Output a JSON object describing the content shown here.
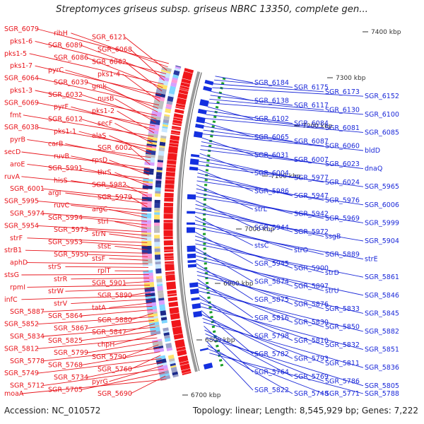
{
  "header": {
    "title": "Streptomyces griseus subsp. griseus NBRC 13350, complete gen...",
    "accession": "Accession: NC_010572",
    "summary": "Topology: linear; Length: 8,545,929 bp; Genes: 7,222"
  },
  "colors": {
    "forward_labels": "#e8141b",
    "reverse_labels": "#1a28d8",
    "forward_cds": "#f0161a",
    "reverse_cds": "#1430e0",
    "backbone": "#9a9a9a",
    "gc_ticks": "#1a9e2a"
  },
  "axis_ticks": [
    "7400 kbp",
    "7300 kbp",
    "7200 kbp",
    "7100 kbp",
    "7000 kbp",
    "6900 kbp",
    "6800 kbp",
    "6700 kbp"
  ],
  "left_labels": [
    "SGR_6079",
    "ribH",
    "SGR_6121",
    "pks1-6",
    "SGR_6089",
    "SGR_6068",
    "pks1-5",
    "SGR_6086",
    "SGR_6062",
    "pks1-7",
    "pyrC",
    "pks1-4",
    "SGR_6064",
    "SGR_6039",
    "gmk",
    "pks1-3",
    "SGR_6032",
    "nusB",
    "SGR_6069",
    "pyrF",
    "pks1-2",
    "fmt",
    "SGR_6012",
    "secF",
    "SGR_6038",
    "pks1-1",
    "alaS",
    "pyrB",
    "carB",
    "SGR_6002",
    "secD",
    "ruvB",
    "rpsD",
    "aroE",
    "SGR_5991",
    "thrS",
    "ruvA",
    "hisS",
    "SGR_5982",
    "SGR_6001",
    "argI",
    "SGR_5979",
    "SGR_5995",
    "ruvC",
    "argC",
    "SGR_5974",
    "SGR_5994",
    "strI",
    "SGR_5954",
    "SGR_5973",
    "strN",
    "strF",
    "SGR_5953",
    "stsE",
    "strB1",
    "SGR_5950",
    "stsF",
    "aphD",
    "strS",
    "rplT",
    "stsG",
    "strR",
    "SGR_5901",
    "rpmI",
    "strW",
    "SGR_5890",
    "infC",
    "strV",
    "tatA",
    "SGR_5887",
    "SGR_5864",
    "SGR_5880",
    "SGR_5852",
    "SGR_5867",
    "SGR_5847",
    "SGR_5834",
    "SGR_5825",
    "chpH",
    "SGR_5812",
    "SGR_5799",
    "SGR_5790",
    "SGR_5778",
    "SGR_5768",
    "SGR_5760",
    "SGR_5749",
    "SGR_5734",
    "pyrG",
    "SGR_5712",
    "SGR_5705",
    "SGR_5690",
    "moaA"
  ],
  "right_labels": [
    "SGR_6184",
    "SGR_6175",
    "SGR_6173",
    "SGR_6152",
    "SGR_6138",
    "SGR_6117",
    "SGR_6130",
    "SGR_6100",
    "SGR_6102",
    "SGR_6084",
    "SGR_6081",
    "SGR_6085",
    "SGR_6065",
    "SGR_6087",
    "SGR_6060",
    "bldD",
    "SGR_6031",
    "SGR_6007",
    "SGR_6023",
    "dnaQ",
    "SGR_6004",
    "SGR_5977",
    "SGR_6024",
    "SGR_5965",
    "SGR_5986",
    "SGR_5947",
    "SGR_5976",
    "SGR_6006",
    "strL",
    "SGR_5942",
    "SGR_5969",
    "SGR_5999",
    "SGR_5944",
    "SGR_5972",
    "ssgB",
    "SGR_5904",
    "stsC",
    "strO",
    "SGR_5889",
    "strE",
    "SGR_5945",
    "SGR_5900",
    "strD",
    "SGR_5861",
    "SGR_5874",
    "SGR_5897",
    "strU",
    "SGR_5846",
    "SGR_5875",
    "SGR_5876",
    "SGR_5833",
    "SGR_5845",
    "SGR_5816",
    "SGR_5830",
    "SGR_5850",
    "SGR_5882",
    "SGR_5798",
    "SGR_5810",
    "SGR_5832",
    "SGR_5851",
    "SGR_5782",
    "SGR_5793",
    "SGR_5811",
    "SGR_5836",
    "SGR_5764",
    "SGR_5769",
    "SGR_5786",
    "SGR_5805",
    "SGR_5822",
    "SGR_5748",
    "SGR_5771",
    "SGR_5788"
  ]
}
